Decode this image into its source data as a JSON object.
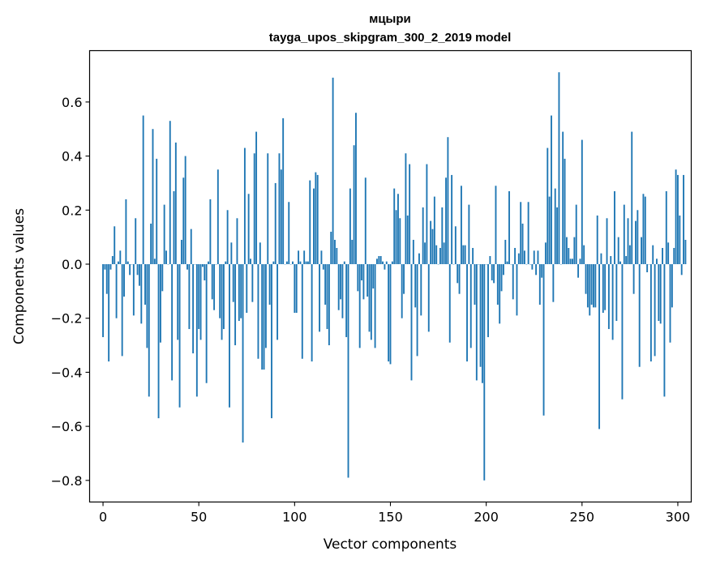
{
  "chart_data": {
    "type": "bar",
    "title": "мцыри",
    "subtitle": "tayga_upos_skipgram_300_2_2019 model",
    "xlabel": "Vector components",
    "ylabel": "Components values",
    "xlim": [
      -7,
      307
    ],
    "ylim": [
      -0.88,
      0.79
    ],
    "xticks": [
      0,
      50,
      100,
      150,
      200,
      250,
      300
    ],
    "xtick_labels": [
      "0",
      "50",
      "100",
      "150",
      "200",
      "250",
      "300"
    ],
    "yticks": [
      -0.8,
      -0.6,
      -0.4,
      -0.2,
      0.0,
      0.2,
      0.4,
      0.6
    ],
    "ytick_labels": [
      "−0.8",
      "−0.6",
      "−0.4",
      "−0.2",
      "0.0",
      "0.2",
      "0.4",
      "0.6"
    ],
    "bar_color": "#1f77b4",
    "values": [
      -0.27,
      -0.02,
      -0.11,
      -0.36,
      -0.02,
      0.03,
      0.14,
      -0.2,
      0.01,
      0.05,
      -0.34,
      -0.12,
      0.24,
      0.01,
      -0.04,
      0.0,
      -0.19,
      0.17,
      -0.04,
      -0.08,
      -0.22,
      0.55,
      -0.15,
      -0.31,
      -0.49,
      0.15,
      0.5,
      0.02,
      0.39,
      -0.57,
      -0.29,
      -0.1,
      0.22,
      0.05,
      0.0,
      0.53,
      -0.43,
      0.27,
      0.45,
      -0.28,
      -0.53,
      0.09,
      0.32,
      0.4,
      -0.02,
      -0.24,
      0.13,
      -0.33,
      0.0,
      -0.49,
      -0.24,
      -0.28,
      -0.01,
      -0.06,
      -0.44,
      0.01,
      0.24,
      -0.13,
      -0.17,
      0.0,
      0.35,
      -0.2,
      -0.28,
      -0.24,
      0.01,
      0.2,
      -0.53,
      0.08,
      -0.14,
      -0.3,
      0.17,
      -0.21,
      -0.2,
      -0.66,
      0.43,
      -0.18,
      0.26,
      0.02,
      -0.14,
      0.41,
      0.49,
      -0.35,
      0.08,
      -0.39,
      -0.39,
      -0.31,
      0.41,
      -0.15,
      -0.57,
      0.01,
      0.3,
      -0.28,
      0.41,
      0.35,
      0.54,
      0.0,
      0.01,
      0.23,
      0.0,
      0.01,
      -0.18,
      -0.18,
      0.05,
      0.01,
      -0.35,
      0.05,
      0.01,
      0.01,
      0.31,
      -0.36,
      0.28,
      0.34,
      0.33,
      -0.25,
      0.05,
      -0.02,
      -0.15,
      -0.24,
      -0.3,
      0.12,
      0.69,
      0.09,
      0.06,
      -0.17,
      -0.13,
      -0.2,
      0.01,
      -0.27,
      -0.79,
      0.28,
      0.09,
      0.44,
      0.56,
      -0.1,
      -0.31,
      -0.06,
      -0.13,
      0.32,
      -0.12,
      -0.25,
      -0.28,
      -0.09,
      -0.31,
      0.02,
      0.03,
      0.03,
      0.01,
      -0.02,
      0.01,
      -0.36,
      -0.37,
      0.01,
      0.28,
      0.2,
      0.26,
      0.17,
      -0.2,
      -0.11,
      0.41,
      0.18,
      0.37,
      -0.43,
      0.09,
      -0.16,
      -0.34,
      0.04,
      -0.19,
      0.21,
      0.08,
      0.37,
      -0.25,
      0.16,
      0.13,
      0.25,
      0.07,
      0.0,
      0.06,
      0.21,
      0.08,
      0.32,
      0.47,
      -0.29,
      0.33,
      0.0,
      0.14,
      -0.07,
      -0.11,
      0.29,
      0.07,
      0.07,
      -0.36,
      0.22,
      -0.31,
      0.06,
      -0.15,
      -0.43,
      0.0,
      -0.38,
      -0.44,
      -0.8,
      0.0,
      -0.27,
      0.03,
      -0.06,
      -0.07,
      0.29,
      -0.15,
      -0.22,
      -0.1,
      -0.04,
      0.09,
      0.01,
      0.27,
      0.0,
      -0.13,
      0.06,
      -0.19,
      0.04,
      0.23,
      0.15,
      0.05,
      0.0,
      0.23,
      0.0,
      -0.02,
      0.05,
      -0.04,
      0.05,
      -0.15,
      -0.05,
      -0.56,
      0.08,
      0.43,
      0.25,
      0.55,
      -0.14,
      0.28,
      0.21,
      0.71,
      0.0,
      0.49,
      0.39,
      0.1,
      0.06,
      0.02,
      0.02,
      0.1,
      0.22,
      -0.05,
      0.02,
      0.46,
      0.07,
      -0.11,
      -0.16,
      -0.19,
      -0.15,
      -0.16,
      -0.16,
      0.18,
      -0.61,
      0.04,
      -0.18,
      -0.17,
      0.17,
      -0.24,
      0.03,
      -0.28,
      0.27,
      -0.21,
      0.1,
      0.01,
      -0.5,
      0.22,
      0.03,
      0.17,
      0.07,
      0.49,
      -0.11,
      0.16,
      0.2,
      -0.38,
      0.1,
      0.26,
      0.25,
      -0.03,
      0.0,
      -0.36,
      0.07,
      -0.34,
      0.02,
      -0.21,
      -0.22,
      0.06,
      -0.49,
      0.27,
      0.08,
      -0.29,
      -0.16,
      0.06,
      0.35,
      0.33,
      0.18,
      -0.04,
      0.33,
      0.09
    ]
  }
}
